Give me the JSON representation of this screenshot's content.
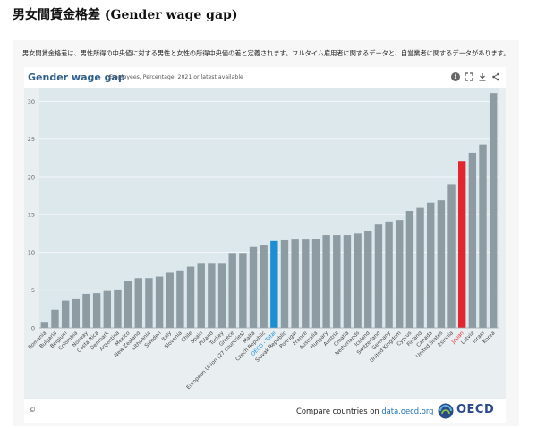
{
  "page": {
    "title": "男女間賃金格差 (Gender wage gap)",
    "description": "男女間賃金格差は、男性所得の中央値に対する男性と女性の所得中央値の差と定義されます。フルタイム雇用者に関するデータと、自営業者に関するデータがあります。"
  },
  "widget": {
    "title": "Gender wage gap",
    "subtitle": "Employees, Percentage, 2021 or latest available",
    "icons": [
      "info-icon",
      "expand-icon",
      "download-icon",
      "share-icon"
    ]
  },
  "footer": {
    "copyright": "©",
    "compare_text": "Compare countries on",
    "compare_link": "data.oecd.org",
    "logo_text": "OECD"
  },
  "colors": {
    "default_bar": "#8d9ba3",
    "oecd_total_bar": "#1d8fd0",
    "japan_bar": "#e2262f",
    "oecd_label": "#1d8fd0",
    "japan_label": "#e2262f",
    "plot_bg": "#dde8ed",
    "grid": "#f3f7f9"
  },
  "chart_data": {
    "type": "bar",
    "title": "Gender wage gap",
    "subtitle": "Employees, Percentage, 2021 or latest available",
    "xlabel": "",
    "ylabel": "",
    "ylim": [
      0,
      31
    ],
    "yticks": [
      0,
      5,
      10,
      15,
      20,
      25,
      30
    ],
    "grid": true,
    "highlight": {
      "OECD - Total": "oecd",
      "Japan": "japan"
    },
    "categories": [
      "Romania",
      "Bulgaria",
      "Belgium",
      "Colombia",
      "Norway",
      "Costa Rica",
      "Denmark",
      "Argentina",
      "Mexico",
      "New Zealand",
      "Lithuania",
      "Sweden",
      "Italy",
      "Slovenia",
      "Chile",
      "Spain",
      "Poland",
      "Turkey",
      "Greece",
      "European Union (27 countries)",
      "Malta",
      "Czech Republic",
      "OECD - Total",
      "Slovak Republic",
      "Portugal",
      "France",
      "Australia",
      "Hungary",
      "Austria",
      "Croatia",
      "Netherlands",
      "Iceland",
      "Switzerland",
      "Germany",
      "United Kingdom",
      "Cyprus",
      "Finland",
      "Canada",
      "United States",
      "Estonia",
      "Japan",
      "Latvia",
      "Israel",
      "Korea"
    ],
    "values": [
      0.8,
      2.4,
      3.6,
      3.8,
      4.5,
      4.6,
      4.9,
      5.1,
      6.2,
      6.6,
      6.6,
      6.8,
      7.4,
      7.6,
      8.1,
      8.6,
      8.6,
      8.6,
      9.9,
      9.9,
      10.8,
      11.0,
      11.5,
      11.6,
      11.7,
      11.7,
      11.8,
      12.3,
      12.3,
      12.3,
      12.5,
      12.8,
      13.7,
      14.1,
      14.3,
      15.5,
      15.9,
      16.6,
      16.9,
      19.0,
      22.1,
      23.2,
      24.3,
      31.1
    ]
  }
}
